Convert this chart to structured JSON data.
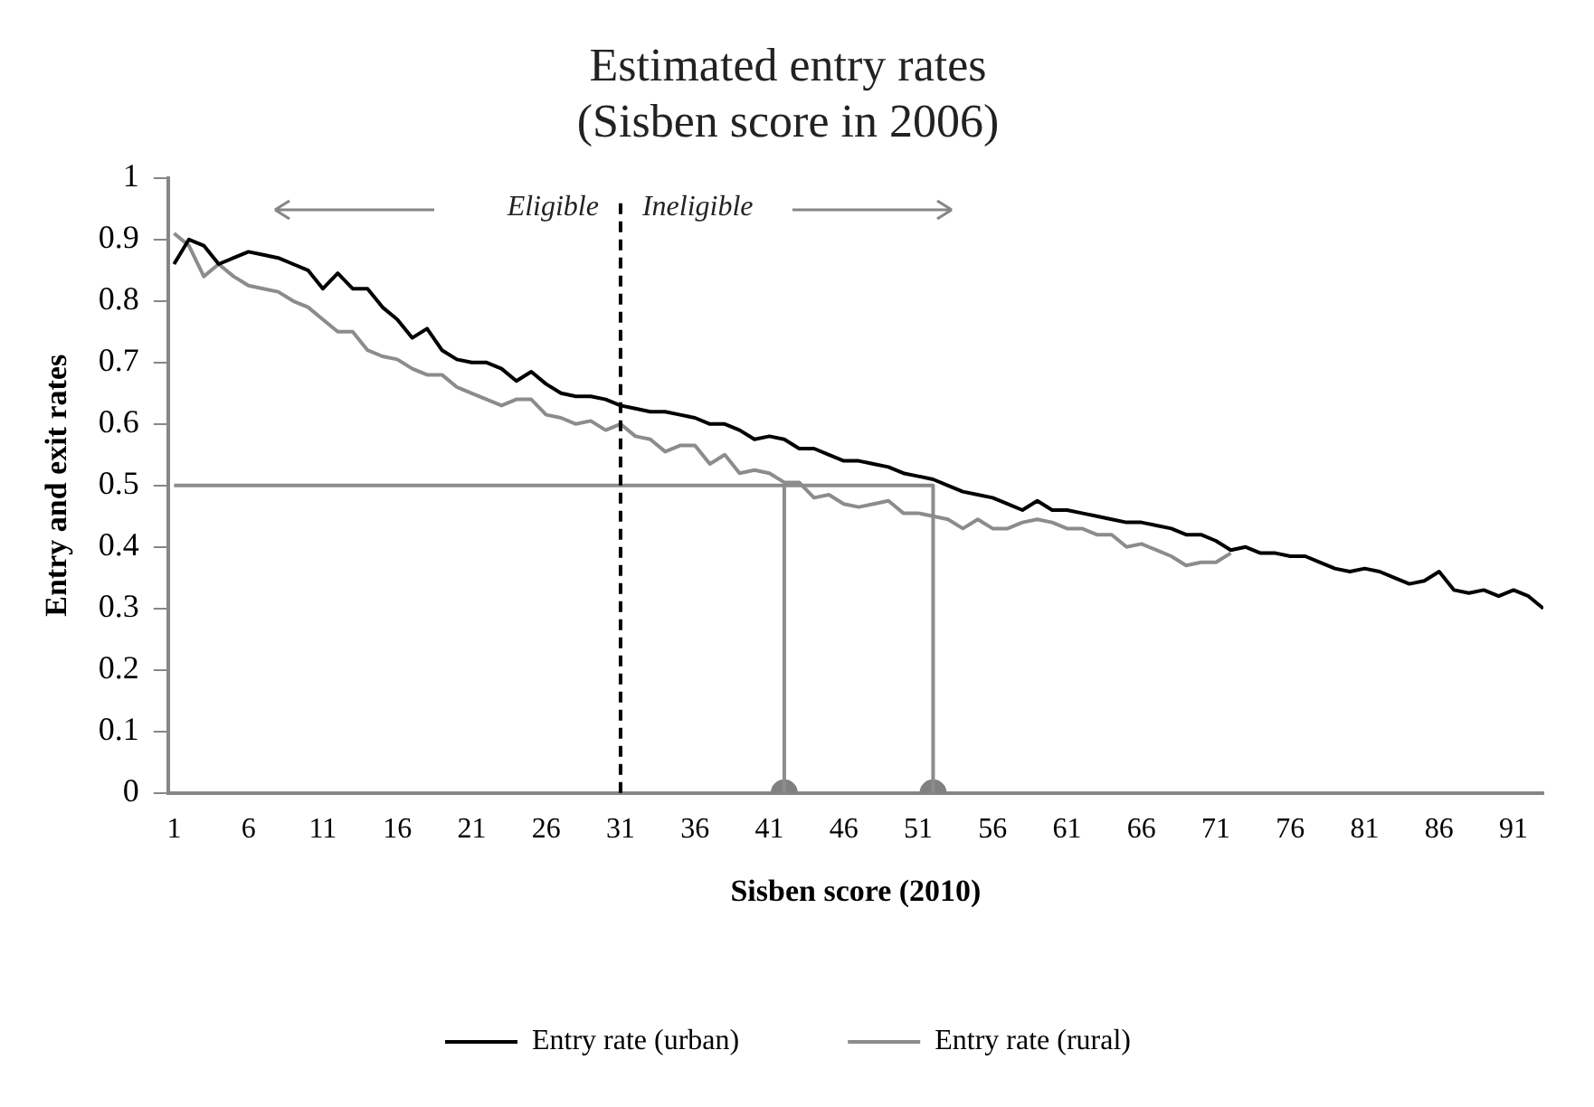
{
  "chart_data": {
    "type": "line",
    "title": "Estimated entry rates",
    "subtitle": "(Sisben score in 2006)",
    "xlabel": "Sisben score (2010)",
    "ylabel": "Entry and exit rates",
    "x": [
      1,
      2,
      3,
      4,
      5,
      6,
      7,
      8,
      9,
      10,
      11,
      12,
      13,
      14,
      15,
      16,
      17,
      18,
      19,
      20,
      21,
      22,
      23,
      24,
      25,
      26,
      27,
      28,
      29,
      30,
      31,
      32,
      33,
      34,
      35,
      36,
      37,
      38,
      39,
      40,
      41,
      42,
      43,
      44,
      45,
      46,
      47,
      48,
      49,
      50,
      51,
      52,
      53,
      54,
      55,
      56,
      57,
      58,
      59,
      60,
      61,
      62,
      63,
      64,
      65,
      66,
      67,
      68,
      69,
      70,
      71,
      72,
      73,
      74,
      75,
      76,
      77,
      78,
      79,
      80,
      81,
      82,
      83,
      84,
      85,
      86,
      87,
      88,
      89,
      90,
      91,
      92,
      93
    ],
    "xlim": [
      0.6,
      93
    ],
    "xticks": [
      1,
      6,
      11,
      16,
      21,
      26,
      31,
      36,
      41,
      46,
      51,
      56,
      61,
      66,
      71,
      76,
      81,
      86,
      91
    ],
    "ylim": [
      0,
      1
    ],
    "yticks": [
      0,
      0.1,
      0.2,
      0.3,
      0.4,
      0.5,
      0.6,
      0.7,
      0.8,
      0.9,
      1
    ],
    "grid": false,
    "legend": "bottom",
    "line_style": "solid",
    "marker": "none",
    "series": [
      {
        "name": "Entry rate (urban)",
        "color": "#000000",
        "values": [
          0.86,
          0.9,
          0.89,
          0.86,
          0.87,
          0.88,
          0.875,
          0.87,
          0.86,
          0.85,
          0.82,
          0.845,
          0.82,
          0.82,
          0.79,
          0.77,
          0.74,
          0.755,
          0.72,
          0.705,
          0.7,
          0.7,
          0.69,
          0.67,
          0.685,
          0.665,
          0.65,
          0.645,
          0.645,
          0.64,
          0.63,
          0.625,
          0.62,
          0.62,
          0.615,
          0.61,
          0.6,
          0.6,
          0.59,
          0.575,
          0.58,
          0.575,
          0.56,
          0.56,
          0.55,
          0.54,
          0.54,
          0.535,
          0.53,
          0.52,
          0.515,
          0.51,
          0.5,
          0.49,
          0.485,
          0.48,
          0.47,
          0.46,
          0.475,
          0.46,
          0.46,
          0.455,
          0.45,
          0.445,
          0.44,
          0.44,
          0.435,
          0.43,
          0.42,
          0.42,
          0.41,
          0.395,
          0.4,
          0.39,
          0.39,
          0.385,
          0.385,
          0.375,
          0.365,
          0.36,
          0.365,
          0.36,
          0.35,
          0.34,
          0.345,
          0.36,
          0.33,
          0.325,
          0.33,
          0.32,
          0.33,
          0.32,
          0.3
        ]
      },
      {
        "name": "Entry rate (rural)",
        "color": "#8c8c8c",
        "values": [
          0.91,
          0.89,
          0.84,
          0.86,
          0.84,
          0.825,
          0.82,
          0.815,
          0.8,
          0.79,
          0.77,
          0.75,
          0.75,
          0.72,
          0.71,
          0.705,
          0.69,
          0.68,
          0.68,
          0.66,
          0.65,
          0.64,
          0.63,
          0.64,
          0.64,
          0.615,
          0.61,
          0.6,
          0.605,
          0.59,
          0.6,
          0.58,
          0.575,
          0.555,
          0.565,
          0.565,
          0.535,
          0.55,
          0.52,
          0.525,
          0.52,
          0.505,
          0.505,
          0.48,
          0.485,
          0.47,
          0.465,
          0.47,
          0.475,
          0.455,
          0.455,
          0.45,
          0.445,
          0.43,
          0.445,
          0.43,
          0.43,
          0.44,
          0.445,
          0.44,
          0.43,
          0.43,
          0.42,
          0.42,
          0.4,
          0.405,
          0.395,
          0.385,
          0.37,
          0.375,
          0.375,
          0.39,
          null,
          null,
          null,
          null,
          null,
          null,
          null,
          null,
          null,
          null,
          null,
          null,
          null,
          null,
          null,
          null,
          null,
          null,
          null,
          null,
          null
        ]
      },
      {
        "type": "line",
        "color": "#8c8c8c",
        "x": [
          1,
          52,
          52
        ],
        "values": [
          0.5,
          0.5,
          0
        ]
      },
      {
        "type": "line",
        "color": "#8c8c8c",
        "x": [
          42,
          42
        ],
        "values": [
          0.5,
          0
        ]
      },
      {
        "type": "scatter",
        "color": "#808080",
        "marker": "circle",
        "x": [
          42,
          52
        ],
        "values": [
          0,
          0
        ]
      }
    ],
    "ref_lines": [
      {
        "axis": "x",
        "value": 31,
        "color": "#000000",
        "line_style": "dashed"
      }
    ],
    "annotations": [
      "Eligible",
      "Ineligible"
    ]
  }
}
